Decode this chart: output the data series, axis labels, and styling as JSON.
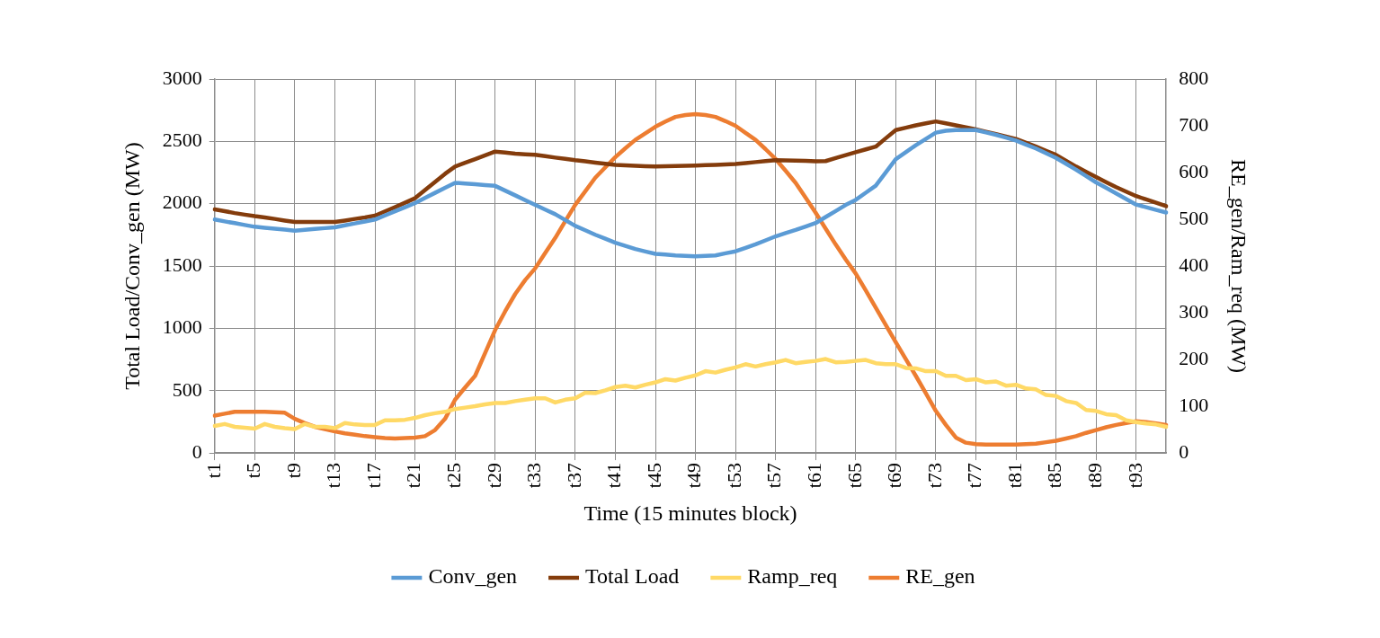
{
  "chart_data": {
    "type": "line",
    "xlabel": "Time (15 minutes block)",
    "ylabel": "Total Load/Conv_gen (MW)",
    "y2label": "RE_gen/Ram_req (MW)",
    "categories": [
      "t1",
      null,
      null,
      null,
      "t5",
      null,
      null,
      null,
      "t9",
      null,
      null,
      null,
      "t13",
      null,
      null,
      null,
      "t17",
      null,
      null,
      null,
      "t21",
      null,
      null,
      null,
      "t25",
      null,
      null,
      null,
      "t29",
      null,
      null,
      null,
      "t33",
      null,
      null,
      null,
      "t37",
      null,
      null,
      null,
      "t41",
      null,
      null,
      null,
      "t45",
      null,
      null,
      null,
      "t49",
      null,
      null,
      null,
      "t53",
      null,
      null,
      null,
      "t57",
      null,
      null,
      null,
      "t61",
      null,
      null,
      null,
      "t65",
      null,
      null,
      null,
      "t69",
      null,
      null,
      null,
      "t73",
      null,
      null,
      null,
      "t77",
      null,
      null,
      null,
      "t81",
      null,
      null,
      null,
      "t85",
      null,
      null,
      null,
      "t89",
      null,
      null,
      null,
      "t93",
      null,
      null,
      null
    ],
    "series": [
      {
        "name": "Conv_gen",
        "color": "#5b9bd5",
        "values": [
          1873,
          1858,
          1844,
          1829,
          1815,
          1807,
          1799,
          1792,
          1784,
          1791,
          1797,
          1804,
          1810,
          1826,
          1842,
          1857,
          1873,
          1906,
          1939,
          1972,
          2005,
          2046,
          2087,
          2127,
          2168,
          2162,
          2156,
          2149,
          2143,
          2105,
          2067,
          2028,
          1990,
          1953,
          1916,
          1869,
          1822,
          1787,
          1751,
          1719,
          1687,
          1662,
          1636,
          1617,
          1598,
          1592,
          1585,
          1582,
          1578,
          1582,
          1585,
          1602,
          1618,
          1646,
          1674,
          1706,
          1738,
          1764,
          1789,
          1817,
          1845,
          1893,
          1941,
          1990,
          2031,
          2088,
          2145,
          2251,
          2357,
          2413,
          2469,
          2520,
          2570,
          2586,
          2591,
          2591,
          2591,
          2572,
          2553,
          2530,
          2507,
          2475,
          2443,
          2405,
          2367,
          2320,
          2273,
          2222,
          2171,
          2127,
          2082,
          2038,
          1993,
          1972,
          1950,
          1929
        ]
      },
      {
        "name": "Total Load",
        "color": "#843c0c",
        "values": [
          1955,
          1940,
          1925,
          1912,
          1900,
          1890,
          1878,
          1865,
          1853,
          1853,
          1853,
          1853,
          1853,
          1865,
          1878,
          1890,
          1904,
          1938,
          1972,
          2008,
          2044,
          2110,
          2175,
          2240,
          2298,
          2328,
          2358,
          2388,
          2418,
          2410,
          2402,
          2397,
          2392,
          2381,
          2370,
          2360,
          2349,
          2340,
          2330,
          2320,
          2311,
          2308,
          2305,
          2301,
          2298,
          2300,
          2302,
          2304,
          2306,
          2309,
          2312,
          2315,
          2318,
          2326,
          2334,
          2342,
          2349,
          2347,
          2345,
          2343,
          2341,
          2342,
          2366,
          2390,
          2413,
          2436,
          2458,
          2525,
          2591,
          2610,
          2629,
          2645,
          2660,
          2645,
          2629,
          2612,
          2596,
          2577,
          2558,
          2539,
          2520,
          2489,
          2458,
          2425,
          2392,
          2345,
          2298,
          2256,
          2214,
          2173,
          2133,
          2097,
          2061,
          2034,
          2007,
          1980
        ]
      },
      {
        "name": "Ramp_req",
        "color": "#ffd966",
        "axis": "y2",
        "values": [
          58,
          62,
          56,
          54,
          52,
          62,
          56,
          53,
          51,
          62,
          56,
          56,
          53,
          64,
          61,
          60,
          60,
          70,
          70,
          71,
          75,
          81,
          85,
          88,
          94,
          97,
          100,
          104,
          107,
          107,
          111,
          114,
          117,
          117,
          108,
          114,
          117,
          129,
          128,
          134,
          141,
          144,
          140,
          146,
          151,
          158,
          155,
          161,
          166,
          175,
          172,
          178,
          183,
          190,
          185,
          190,
          194,
          199,
          192,
          195,
          197,
          201,
          194,
          195,
          197,
          199,
          192,
          190,
          190,
          182,
          181,
          175,
          175,
          165,
          165,
          156,
          158,
          151,
          153,
          144,
          146,
          138,
          136,
          124,
          122,
          111,
          107,
          92,
          90,
          83,
          81,
          70,
          66,
          63,
          61,
          56
        ]
      },
      {
        "name": "RE_gen",
        "color": "#ed7d31",
        "axis": "y2",
        "values": [
          80,
          84,
          88,
          88,
          88,
          88,
          87,
          86,
          73,
          64,
          56,
          51,
          46,
          42,
          39,
          36,
          34,
          32,
          31,
          32,
          33,
          36,
          49,
          73,
          114,
          140,
          165,
          214,
          263,
          303,
          340,
          370,
          395,
          428,
          460,
          496,
          531,
          560,
          589,
          611,
          633,
          652,
          670,
          684,
          698,
          709,
          719,
          723,
          725,
          723,
          719,
          710,
          700,
          685,
          670,
          650,
          629,
          604,
          578,
          546,
          514,
          480,
          446,
          414,
          384,
          348,
          311,
          274,
          237,
          201,
          165,
          128,
          90,
          60,
          33,
          22,
          19,
          18,
          18,
          18,
          18,
          19,
          20,
          23,
          26,
          31,
          36,
          43,
          49,
          55,
          60,
          64,
          68,
          66,
          63,
          60
        ]
      }
    ],
    "ylim": [
      0,
      3000
    ],
    "yticks": [
      0,
      500,
      1000,
      1500,
      2000,
      2500,
      3000
    ],
    "y2lim": [
      0,
      800
    ],
    "y2ticks": [
      0,
      100,
      200,
      300,
      400,
      500,
      600,
      700,
      800
    ],
    "grid": true,
    "legend": "bottom",
    "marker": "none",
    "line_style": "solid"
  }
}
